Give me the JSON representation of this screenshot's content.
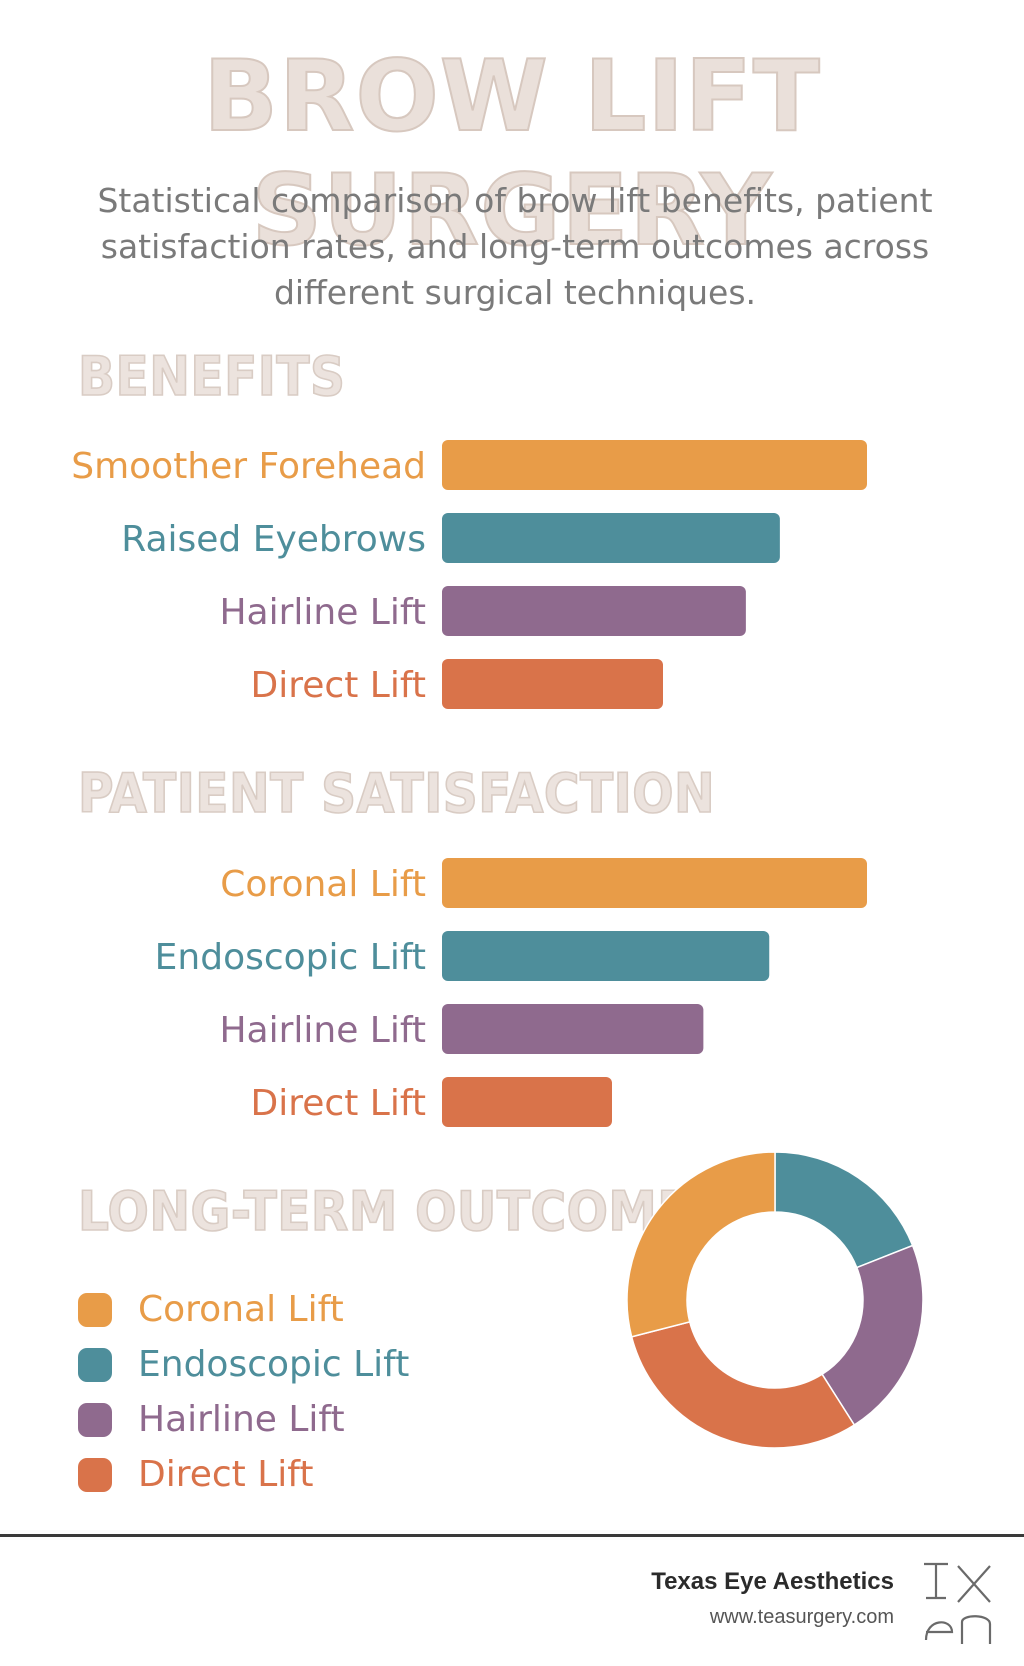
{
  "header": {
    "title": "BROW LIFT SURGERY",
    "subtitle": "Statistical comparison of brow lift benefits, patient satisfaction rates, and long-term outcomes across different surgical techniques."
  },
  "colors": {
    "orange": "#E89C48",
    "teal": "#4E8E9B",
    "purple": "#8F6A8E",
    "rust": "#D9734A"
  },
  "sections": {
    "benefits": {
      "heading": "BENEFITS"
    },
    "satisfaction": {
      "heading": "PATIENT SATISFACTION"
    },
    "outcomes": {
      "heading": "LONG-TERM OUTCOMES"
    }
  },
  "chart_data": [
    {
      "type": "bar",
      "orientation": "horizontal",
      "title": "BENEFITS",
      "categories": [
        "Smoother Forehead",
        "Raised Eyebrows",
        "Hairline Lift",
        "Direct Lift"
      ],
      "values": [
        100,
        79.5,
        71.5,
        52
      ],
      "colors": [
        "#E89C48",
        "#4E8E9B",
        "#8F6A8E",
        "#D9734A"
      ],
      "xlim": [
        0,
        100
      ],
      "grid": false
    },
    {
      "type": "bar",
      "orientation": "horizontal",
      "title": "PATIENT SATISFACTION",
      "categories": [
        "Coronal Lift",
        "Endoscopic Lift",
        "Hairline Lift",
        "Direct Lift"
      ],
      "values": [
        100,
        77,
        61.5,
        40
      ],
      "colors": [
        "#E89C48",
        "#4E8E9B",
        "#8F6A8E",
        "#D9734A"
      ],
      "xlim": [
        0,
        100
      ],
      "grid": false
    },
    {
      "type": "pie",
      "donut": true,
      "title": "LONG-TERM OUTCOMES",
      "labels": [
        "Coronal Lift",
        "Endoscopic Lift",
        "Hairline Lift",
        "Direct Lift"
      ],
      "values": [
        29,
        19,
        22,
        30
      ],
      "colors": [
        "#E89C48",
        "#4E8E9B",
        "#8F6A8E",
        "#D9734A"
      ],
      "legend": "left"
    }
  ],
  "footer": {
    "brand": "Texas Eye Aesthetics",
    "url": "www.teasurgery.com",
    "logo_icon": "tea-monogram-logo"
  }
}
